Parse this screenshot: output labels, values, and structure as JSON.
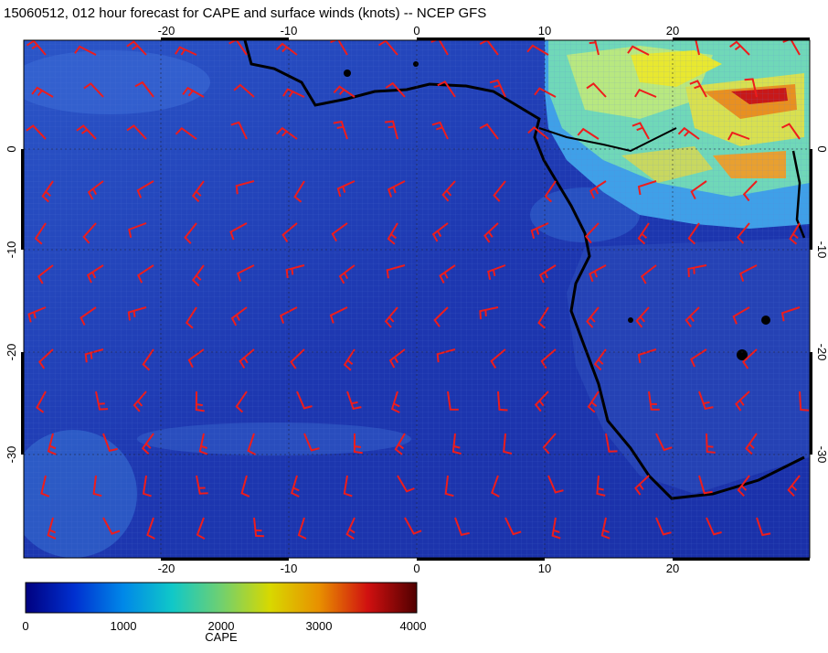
{
  "title": "15060512, 012 hour forecast for CAPE and surface winds (knots) -- NCEP GFS",
  "map": {
    "lon_range": [
      -30,
      30
    ],
    "lat_range": [
      -40,
      10
    ],
    "lon_ticks": [
      "-20",
      "-10",
      "0",
      "10",
      "20"
    ],
    "lat_ticks": [
      "0",
      "-10",
      "-20",
      "-30"
    ],
    "wind_color": "#ee1c1c",
    "coast_color": "#000000",
    "ocean_color": "#1f3fb8"
  },
  "colorbar": {
    "title": "CAPE",
    "ticks": [
      "0",
      "1000",
      "2000",
      "3000",
      "4000"
    ],
    "stops": [
      "#000080",
      "#0030d0",
      "#0088e8",
      "#10c8c8",
      "#70d070",
      "#d8d800",
      "#e89000",
      "#d01010",
      "#500000"
    ]
  }
}
